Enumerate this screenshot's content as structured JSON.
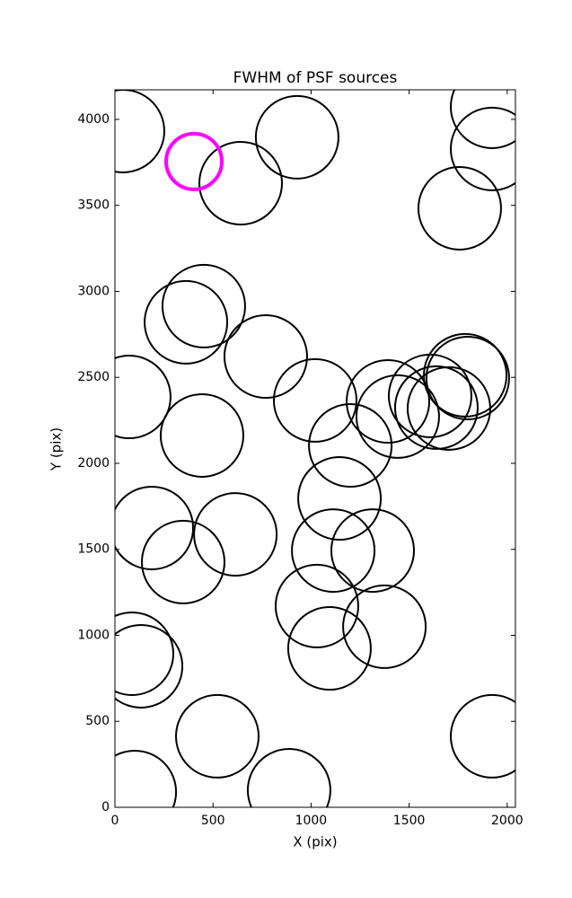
{
  "chart_data": {
    "type": "scatter",
    "title": "FWHM of PSF sources",
    "x_label": "X (pix)",
    "y_label": "Y (pix)",
    "xlim": [
      0,
      2042
    ],
    "ylim": [
      0,
      4172
    ],
    "xticks": [
      0,
      500,
      1000,
      1500,
      2000
    ],
    "yticks": [
      0,
      500,
      1000,
      1500,
      2000,
      2500,
      3000,
      3500,
      4000
    ],
    "marker": "open-circle",
    "series": [
      {
        "color": "#000000",
        "x": [
          41,
          641,
          929,
          1923,
          1923,
          1758,
          453,
          362,
          769,
          73,
          444,
          1021,
          1200,
          1392,
          1442,
          1607,
          1639,
          1786,
          1799,
          1703,
          1145,
          188,
          614,
          348,
          1113,
          1314,
          1030,
          1374,
          1094,
          87,
          133,
          522,
          1923,
          101,
          888
        ],
        "values": [
          3932,
          3629,
          3896,
          4073,
          3828,
          3483,
          2914,
          2820,
          2621,
          2386,
          2162,
          2366,
          2104,
          2360,
          2272,
          2392,
          2324,
          2512,
          2496,
          2319,
          1796,
          1624,
          1587,
          1426,
          1493,
          1493,
          1170,
          1050,
          924,
          893,
          820,
          413,
          413,
          89,
          99
        ]
      },
      {
        "color": "#ff00ff",
        "x": [
          403
        ],
        "values": [
          3755
        ]
      }
    ]
  }
}
